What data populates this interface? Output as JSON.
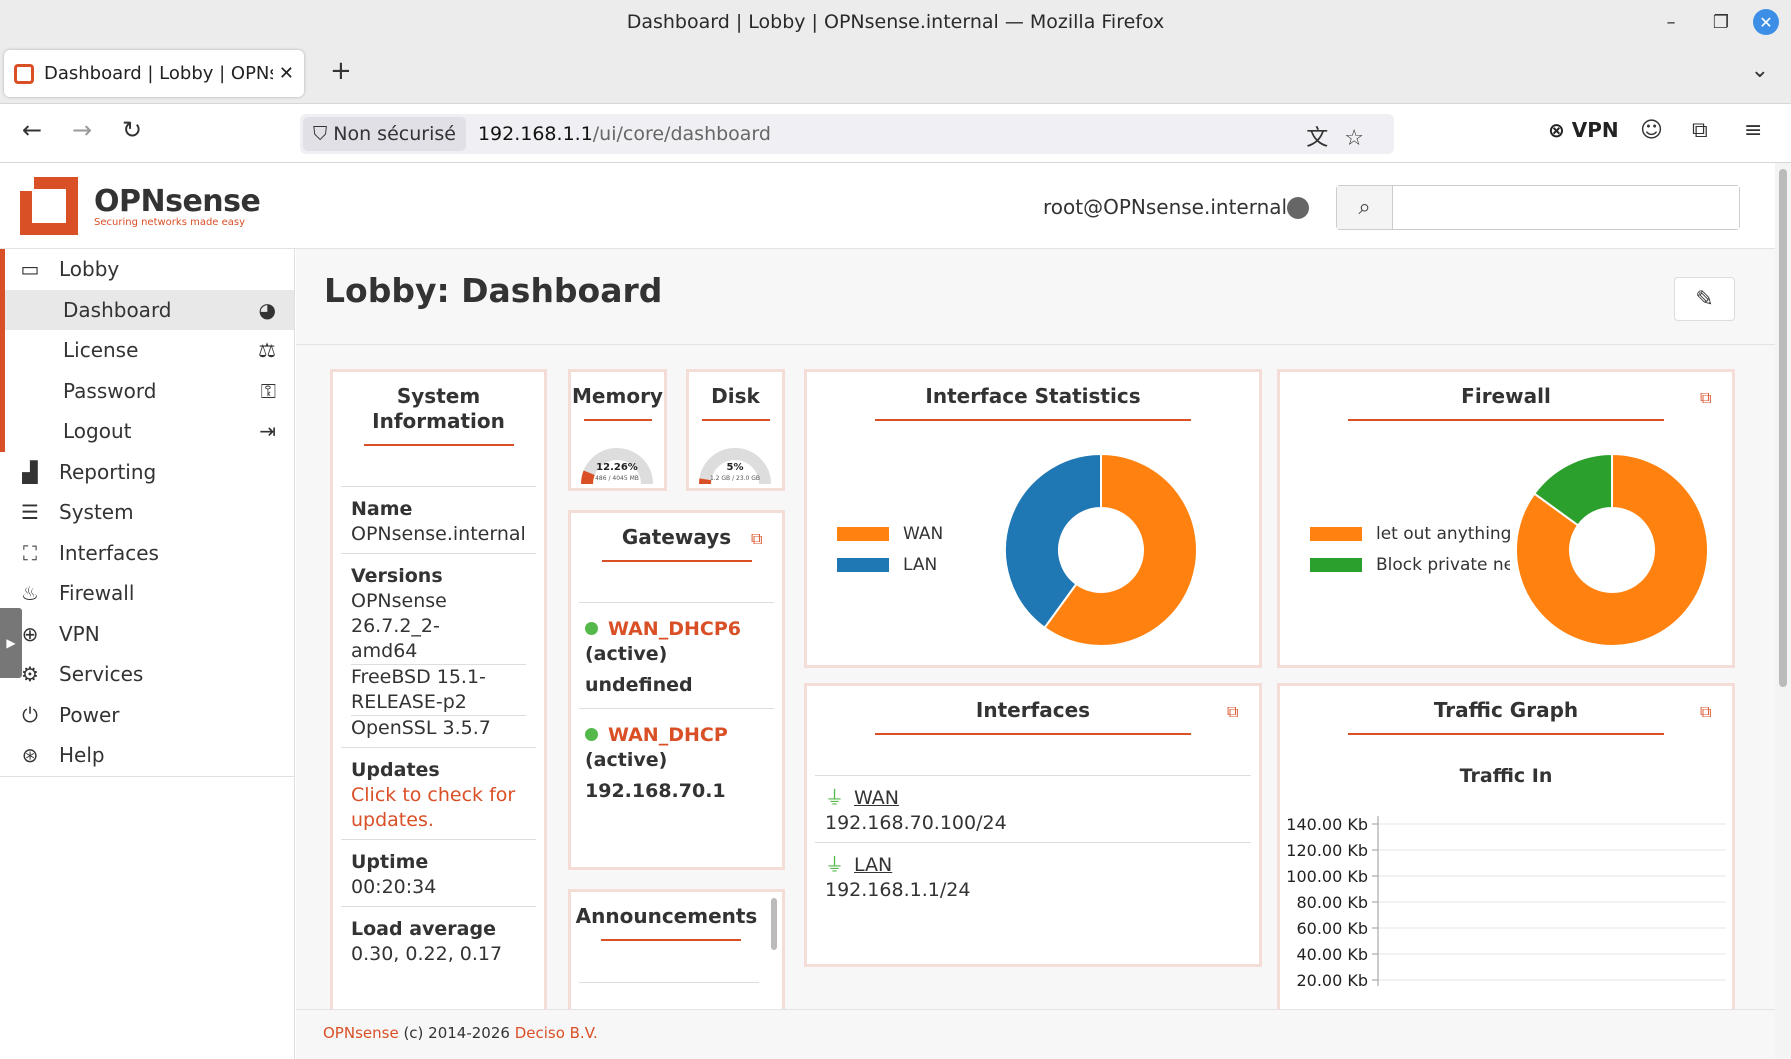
{
  "window": {
    "title": "Dashboard | Lobby | OPNsense.internal — Mozilla Firefox",
    "min": "–",
    "max": "❐",
    "close": "✕"
  },
  "tab": {
    "title": "Dashboard | Lobby | OPNsense.internal",
    "close": "✕",
    "new": "+",
    "menu": "⌄"
  },
  "nav": {
    "back": "←",
    "forward": "→",
    "reload": "↻",
    "security": "Non sécurisé",
    "url_host": "192.168.1.1",
    "url_path": "/ui/core/dashboard",
    "url_icons": "文☆",
    "vpn": "⊗ VPN",
    "profile": "☺",
    "extensions": "⧉",
    "menu": "≡"
  },
  "header": {
    "brand": "OPNsense",
    "tagline": "Securing networks made easy",
    "user": "root@OPNsense.internal",
    "search_icon": "⌕",
    "search_placeholder": ""
  },
  "sidebar": {
    "handle": "▶",
    "lobby": {
      "label": "Lobby",
      "icon": "laptop-icon",
      "glyph": "▭"
    },
    "lobby_items": [
      {
        "label": "Dashboard",
        "icon": "dashboard-icon",
        "glyph": "◕"
      },
      {
        "label": "License",
        "icon": "scale-icon",
        "glyph": "⚖"
      },
      {
        "label": "Password",
        "icon": "key-icon",
        "glyph": "⚿"
      },
      {
        "label": "Logout",
        "icon": "logout-icon",
        "glyph": "⇥"
      }
    ],
    "items": [
      {
        "label": "Reporting",
        "icon": "chart-icon",
        "glyph": "▟"
      },
      {
        "label": "System",
        "icon": "server-icon",
        "glyph": "☰"
      },
      {
        "label": "Interfaces",
        "icon": "network-icon",
        "glyph": "⛶"
      },
      {
        "label": "Firewall",
        "icon": "fire-icon",
        "glyph": "♨"
      },
      {
        "label": "VPN",
        "icon": "globe-icon",
        "glyph": "⊕"
      },
      {
        "label": "Services",
        "icon": "gear-icon",
        "glyph": "⚙"
      },
      {
        "label": "Power",
        "icon": "plug-icon",
        "glyph": "⏻"
      },
      {
        "label": "Help",
        "icon": "lifering-icon",
        "glyph": "⊛"
      }
    ]
  },
  "page": {
    "title": "Lobby: Dashboard",
    "edit": "✎"
  },
  "sysinfo": {
    "title": "System Information",
    "name_label": "Name",
    "name": "OPNsense.internal",
    "versions_label": "Versions",
    "v1a": "OPNsense 26.7.2_2-",
    "v1b": "amd64",
    "v2a": "FreeBSD 15.1-",
    "v2b": "RELEASE-p2",
    "v3": "OpenSSL 3.5.7",
    "updates_label": "Updates",
    "updates_a": "Click to check for",
    "updates_b": "updates.",
    "uptime_label": "Uptime",
    "uptime": "00:20:34",
    "load_label": "Load average",
    "load": "0.30, 0.22, 0.17"
  },
  "memory": {
    "title": "Memory",
    "pct": "12.26%",
    "detail": "486 / 4045 MB",
    "value": 0.1226
  },
  "disk": {
    "title": "Disk",
    "pct": "5%",
    "detail": "1.2 GB / 23.0 GB",
    "value": 0.05
  },
  "gateways": {
    "title": "Gateways",
    "ext": "⧉",
    "items": [
      {
        "name": "WAN_DHCP6",
        "status": "(active)",
        "addr": "undefined"
      },
      {
        "name": "WAN_DHCP",
        "status": "(active)",
        "addr": "192.168.70.1"
      }
    ]
  },
  "announcements": {
    "title": "Announcements"
  },
  "ifstats": {
    "title": "Interface Statistics"
  },
  "firewall": {
    "title": "Firewall",
    "ext": "⧉"
  },
  "interfaces": {
    "title": "Interfaces",
    "ext": "⧉",
    "items": [
      {
        "name": "WAN",
        "addr": "192.168.70.100/24"
      },
      {
        "name": "LAN",
        "addr": "192.168.1.1/24"
      }
    ]
  },
  "traffic": {
    "title": "Traffic Graph",
    "ext": "⧉",
    "subtitle": "Traffic In"
  },
  "footer": {
    "a": "OPNsense",
    "b": " (c) 2014-2026 ",
    "c": "Deciso B.V."
  },
  "colors": {
    "accent": "#d94f26",
    "orange": "#ff8210",
    "blue": "#1f77b4",
    "green": "#2ca02c"
  },
  "chart_data": [
    {
      "type": "pie",
      "title": "Interface Statistics",
      "categories": [
        "WAN",
        "LAN"
      ],
      "values": [
        60,
        40
      ],
      "colors": [
        "#ff8210",
        "#1f77b4"
      ],
      "legend": "left"
    },
    {
      "type": "pie",
      "title": "Firewall",
      "categories": [
        "let out anything fro",
        "Block private netw"
      ],
      "values": [
        85,
        15
      ],
      "colors": [
        "#ff8210",
        "#2ca02c"
      ],
      "legend": "left"
    },
    {
      "type": "line",
      "title": "Traffic In",
      "y_ticks": [
        "140.00 Kb",
        "120.00 Kb",
        "100.00 Kb",
        "80.00 Kb",
        "60.00 Kb",
        "40.00 Kb",
        "20.00 Kb"
      ],
      "series": []
    }
  ]
}
